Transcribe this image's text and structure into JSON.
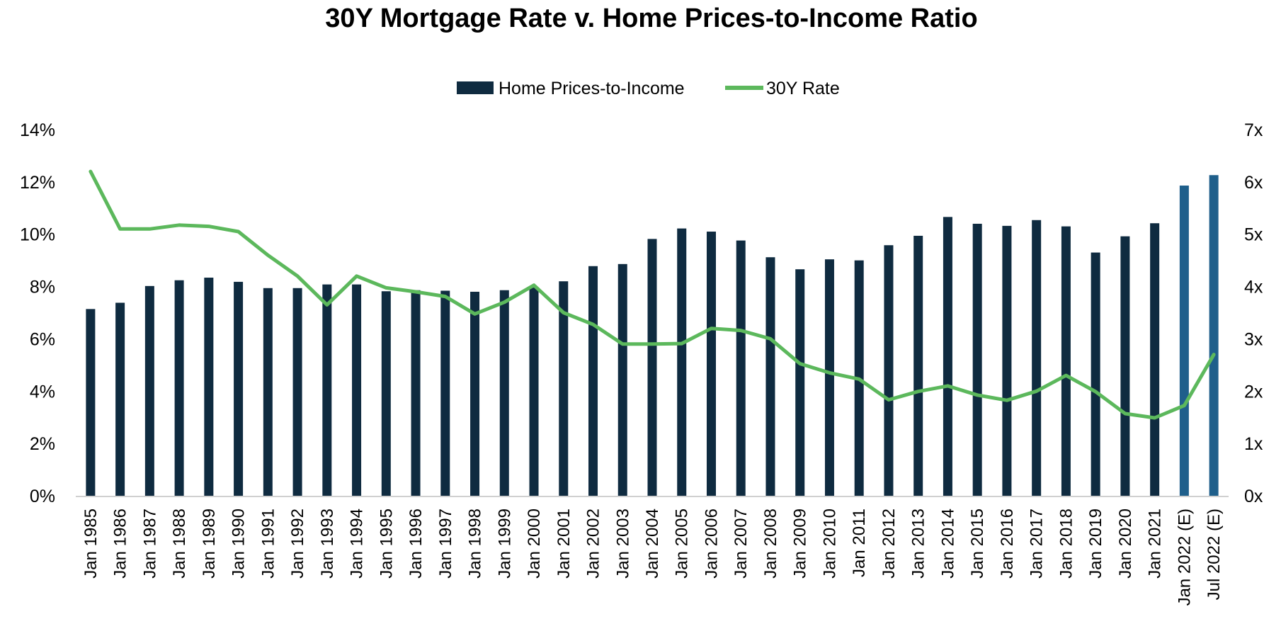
{
  "chart_data": {
    "type": "bar+line",
    "title": "30Y Mortgage Rate v. Home Prices-to-Income Ratio",
    "legend": {
      "placement": "top-center"
    },
    "grid": false,
    "categories": [
      "Jan 1985",
      "Jan 1986",
      "Jan 1987",
      "Jan 1988",
      "Jan 1989",
      "Jan 1990",
      "Jan 1991",
      "Jan 1992",
      "Jan 1993",
      "Jan 1994",
      "Jan 1995",
      "Jan 1996",
      "Jan 1997",
      "Jan 1998",
      "Jan 1999",
      "Jan 2000",
      "Jan 2001",
      "Jan 2002",
      "Jan 2003",
      "Jan 2004",
      "Jan 2005",
      "Jan 2006",
      "Jan 2007",
      "Jan 2008",
      "Jan 2009",
      "Jan 2010",
      "Jan 2011",
      "Jan 2012",
      "Jan 2013",
      "Jan 2014",
      "Jan 2015",
      "Jan 2016",
      "Jan 2017",
      "Jan 2018",
      "Jan 2019",
      "Jan 2020",
      "Jan 2021",
      "Jan 2022 (E)",
      "Jul 2022 (E)"
    ],
    "y_left": {
      "ylim": [
        0,
        14
      ],
      "ticks": [
        "0%",
        "2%",
        "4%",
        "6%",
        "8%",
        "10%",
        "12%",
        "14%"
      ]
    },
    "y_right": {
      "ylim": [
        0,
        7
      ],
      "ticks": [
        "0x",
        "1x",
        "2x",
        "3x",
        "4x",
        "5x",
        "6x",
        "7x"
      ]
    },
    "series": [
      {
        "name": "Home Prices-to-Income",
        "type": "bar",
        "axis": "right",
        "color": "#0f2b40",
        "estimate_color": "#1f5f8b",
        "values": [
          3.57,
          3.69,
          4.01,
          4.12,
          4.17,
          4.09,
          3.97,
          3.97,
          4.04,
          4.04,
          3.91,
          3.93,
          3.92,
          3.9,
          3.93,
          3.98,
          4.1,
          4.39,
          4.43,
          4.91,
          5.11,
          5.05,
          4.88,
          4.56,
          4.33,
          4.52,
          4.5,
          4.79,
          4.97,
          5.33,
          5.2,
          5.16,
          5.27,
          5.15,
          4.65,
          4.96,
          5.21,
          5.93,
          6.13
        ]
      },
      {
        "name": "30Y Rate",
        "type": "line",
        "axis": "left",
        "color": "#5cb85c",
        "values": [
          12.4,
          10.2,
          10.2,
          10.35,
          10.3,
          10.1,
          9.2,
          8.4,
          7.3,
          8.4,
          7.95,
          7.8,
          7.62,
          6.95,
          7.4,
          8.05,
          7.0,
          6.55,
          5.8,
          5.8,
          5.82,
          6.4,
          6.32,
          6.0,
          5.05,
          4.7,
          4.46,
          3.67,
          3.99,
          4.2,
          3.85,
          3.65,
          4.0,
          4.6,
          3.98,
          3.14,
          2.98,
          3.45,
          5.4
        ]
      }
    ]
  }
}
